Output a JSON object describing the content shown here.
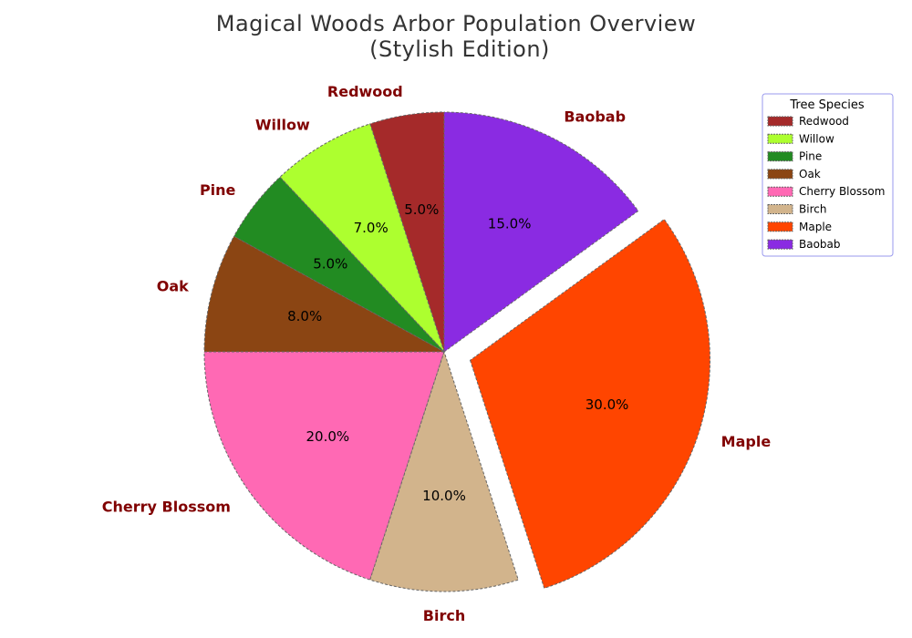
{
  "chart_data": {
    "type": "pie",
    "title_lines": [
      "Magical Woods Arbor Population Overview",
      "(Stylish Edition)"
    ],
    "categories": [
      "Redwood",
      "Willow",
      "Pine",
      "Oak",
      "Cherry Blossom",
      "Birch",
      "Maple",
      "Baobab"
    ],
    "values": [
      5.0,
      7.0,
      5.0,
      8.0,
      20.0,
      10.0,
      30.0,
      15.0
    ],
    "percent_labels": [
      "5.0%",
      "7.0%",
      "5.0%",
      "8.0%",
      "20.0%",
      "10.0%",
      "30.0%",
      "15.0%"
    ],
    "colors": [
      "#a52a2a",
      "#adff2f",
      "#228b22",
      "#8b4513",
      "#ff69b4",
      "#d2b48c",
      "#ff4500",
      "#8a2be2"
    ],
    "exploded": "Maple",
    "start_angle_deg": 90,
    "direction": "counterclockwise",
    "legend": {
      "title": "Tree Species",
      "placement": "top-right",
      "entries": [
        "Redwood",
        "Willow",
        "Pine",
        "Oak",
        "Cherry Blossom",
        "Birch",
        "Maple",
        "Baobab"
      ]
    },
    "label_color": "#800000",
    "edge_color": "#666666"
  }
}
